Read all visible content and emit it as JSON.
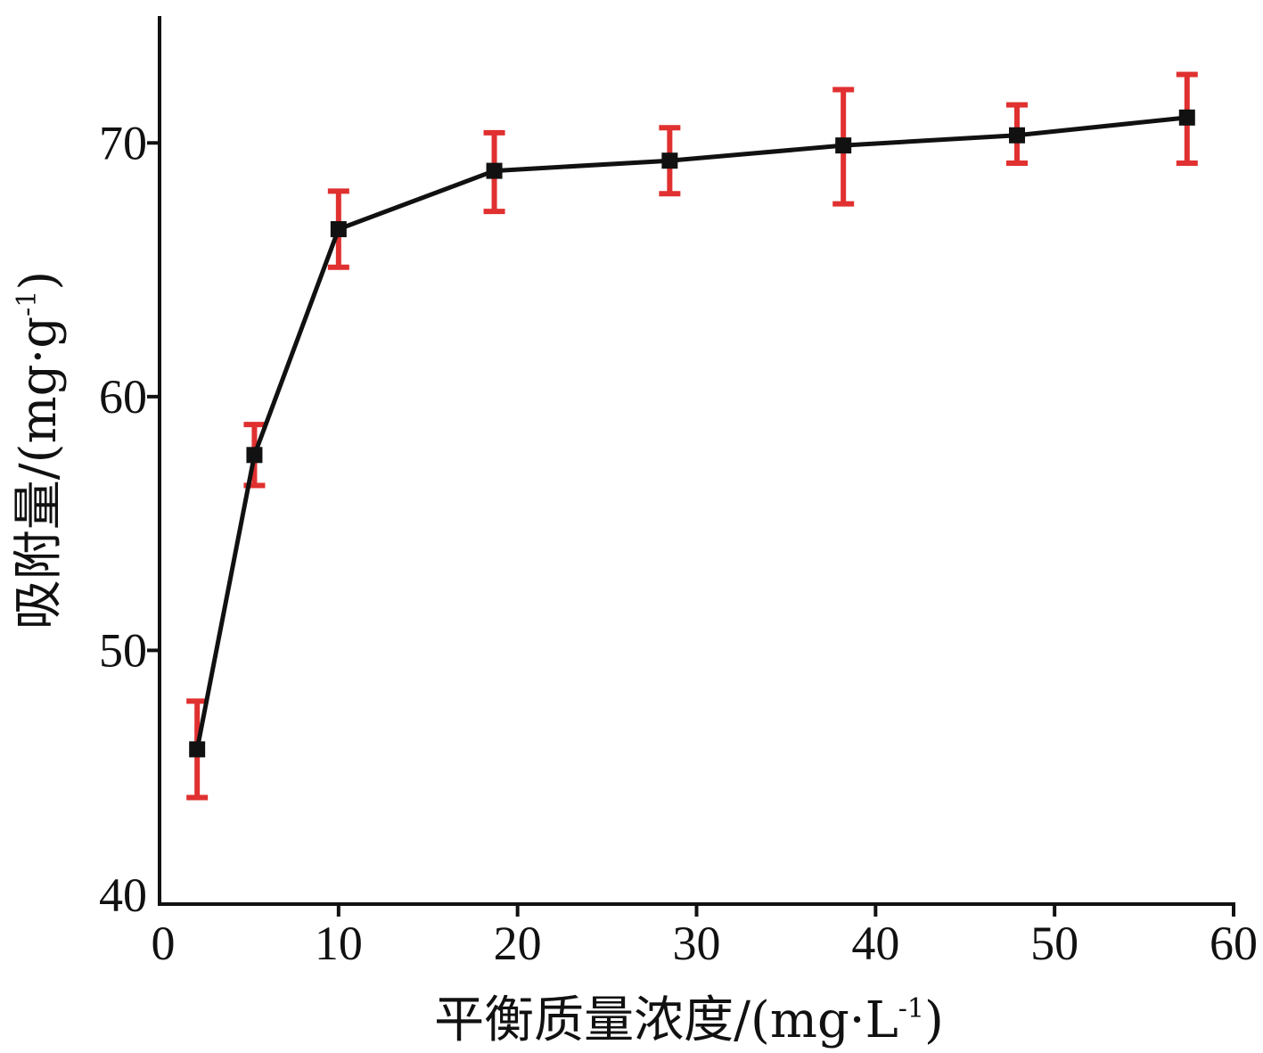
{
  "chart_data": {
    "type": "line",
    "xlabel": "平衡质量浓度/(mg·L",
    "xlabel_sup": "-1",
    "xlabel_close": ")",
    "ylabel": "吸附量/(mg·g",
    "ylabel_sup": "-1",
    "ylabel_close": ")",
    "xlim": [
      0,
      60
    ],
    "ylim": [
      40,
      75
    ],
    "xticks": [
      0,
      10,
      20,
      30,
      40,
      50,
      60
    ],
    "yticks": [
      40,
      50,
      60,
      70
    ],
    "series": [
      {
        "x": [
          2.1,
          5.3,
          10.0,
          18.7,
          28.5,
          38.2,
          47.9,
          57.4
        ],
        "y": [
          46.1,
          57.7,
          66.6,
          68.9,
          69.3,
          69.9,
          70.3,
          71.0
        ],
        "err_low": [
          44.2,
          56.5,
          65.1,
          67.3,
          68.0,
          67.6,
          69.2,
          69.2
        ],
        "err_high": [
          48.0,
          58.9,
          68.1,
          70.4,
          70.6,
          72.1,
          71.5,
          72.7
        ]
      }
    ],
    "colors": {
      "line": "#111111",
      "marker": "#111111",
      "error_bar": "#e03030",
      "axis": "#111111"
    },
    "grid": false,
    "legend": "none"
  }
}
